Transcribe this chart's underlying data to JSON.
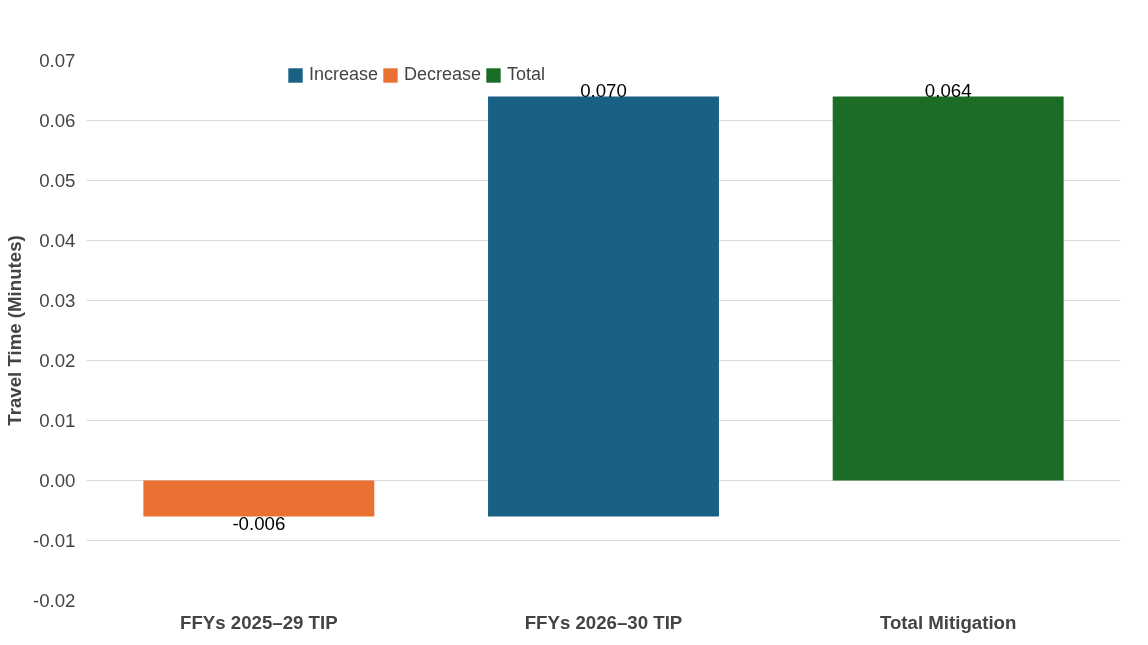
{
  "chart_data": {
    "type": "bar",
    "categories": [
      "FFYs 2025–29 TIP",
      "FFYs 2026–30 TIP",
      "Total Mitigation"
    ],
    "series": [
      {
        "name": "Increase",
        "color": "#186184",
        "values": [
          null,
          0.07,
          null
        ],
        "base": [
          null,
          -0.006,
          null
        ],
        "value_labels": [
          null,
          "0.070",
          null
        ]
      },
      {
        "name": "Decrease",
        "color": "#e97132",
        "values": [
          -0.006,
          null,
          null
        ],
        "base": [
          0,
          null,
          null
        ],
        "value_labels": [
          "-0.006",
          null,
          null
        ]
      },
      {
        "name": "Total",
        "color": "#1b6d26",
        "values": [
          null,
          null,
          0.064
        ],
        "base": [
          null,
          null,
          0
        ],
        "value_labels": [
          null,
          null,
          "0.064"
        ]
      }
    ],
    "ylabel": "Travel Time (Minutes)",
    "ylim": [
      -0.02,
      0.07
    ],
    "yticks": [
      -0.02,
      -0.01,
      {
        "value": 0,
        "label": "0.00"
      },
      0.01,
      0.02,
      0.03,
      0.04,
      0.05,
      0.06,
      0.07
    ],
    "grid": "y",
    "legend": "top"
  }
}
